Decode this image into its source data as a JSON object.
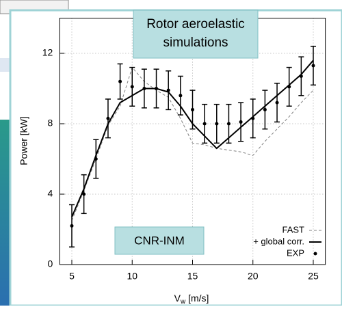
{
  "chart_data": {
    "type": "line",
    "title_box": [
      "Rotor aeroelastic",
      "simulations"
    ],
    "label_box": "CNR-INM",
    "x_label": [
      "V",
      "w",
      " [m/s]"
    ],
    "y_label": "Power [kW]",
    "x": [
      5,
      6,
      7,
      8,
      9,
      10,
      11,
      12,
      13,
      14,
      15,
      16,
      17,
      18,
      19,
      20,
      21,
      22,
      23,
      24,
      25
    ],
    "series": [
      {
        "name": "FAST",
        "color": "#808080",
        "style": "dashed",
        "values": [
          2.5,
          4.2,
          6.0,
          7.9,
          9.0,
          11.2,
          10.4,
          9.9,
          9.5,
          8.3,
          6.9,
          6.8,
          6.6,
          6.5,
          6.4,
          6.2,
          7.0,
          7.7,
          8.4,
          9.2,
          9.9
        ]
      },
      {
        "name": "+ global corr.",
        "color": "#000000",
        "style": "solid",
        "values": [
          2.7,
          4.3,
          6.2,
          8.0,
          9.2,
          9.6,
          10.0,
          10.0,
          9.8,
          9.0,
          8.0,
          7.3,
          6.6,
          7.2,
          7.8,
          8.4,
          9.0,
          9.6,
          10.2,
          10.8,
          11.6
        ]
      },
      {
        "name": "EXP",
        "color": "#000000",
        "style": "points",
        "values": [
          2.2,
          4.0,
          6.0,
          8.3,
          10.4,
          10.1,
          10.0,
          10.0,
          9.9,
          9.6,
          8.8,
          8.0,
          8.0,
          8.0,
          8.1,
          8.3,
          8.8,
          9.2,
          10.1,
          10.7,
          11.3
        ],
        "errors": [
          1.2,
          1.1,
          1.1,
          1.1,
          1.0,
          1.1,
          1.1,
          1.1,
          1.1,
          1.1,
          1.1,
          1.1,
          1.1,
          1.1,
          1.1,
          1.1,
          1.1,
          1.1,
          1.1,
          1.1,
          1.1
        ]
      }
    ],
    "xlim": [
      4,
      26
    ],
    "ylim": [
      0,
      14
    ],
    "xticks": [
      5,
      10,
      15,
      20,
      25
    ],
    "yticks": [
      0,
      4,
      8,
      12
    ],
    "grid": true,
    "legend": "lower right"
  }
}
